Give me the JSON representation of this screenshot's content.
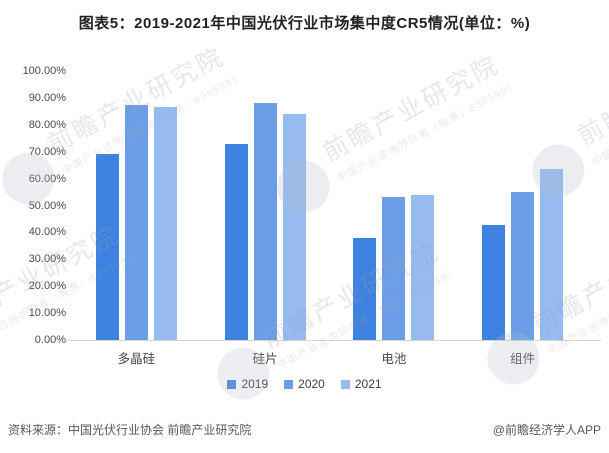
{
  "title": "图表5：2019-2021年中国光伏行业市场集中度CR5情况(单位：%)",
  "chart_data": {
    "type": "bar",
    "categories": [
      "多晶硅",
      "硅片",
      "电池",
      "组件"
    ],
    "series": [
      {
        "name": "2019",
        "color": "#3E82DF",
        "values": [
          69.3,
          72.8,
          37.9,
          42.8
        ]
      },
      {
        "name": "2020",
        "color": "#6B9EE7",
        "values": [
          87.5,
          88.1,
          53.2,
          55.1
        ]
      },
      {
        "name": "2021",
        "color": "#95BBEF",
        "values": [
          86.7,
          84.0,
          53.9,
          63.4
        ]
      }
    ],
    "y_ticks": [
      "100.00%",
      "90.00%",
      "80.00%",
      "70.00%",
      "60.00%",
      "50.00%",
      "40.00%",
      "30.00%",
      "20.00%",
      "10.00%",
      "0.00%"
    ],
    "ylim": [
      0,
      100
    ],
    "xlabel": "",
    "ylabel": "",
    "grid": false,
    "legend_position": "bottom"
  },
  "footer": {
    "source": "资料来源：中国光伏行业协会 前瞻产业研究院",
    "credit": "@前瞻经济学人APP"
  },
  "watermark": {
    "line1": "前瞻产业研究院",
    "line2": "中国产业咨询领导者（股票：839599）"
  }
}
